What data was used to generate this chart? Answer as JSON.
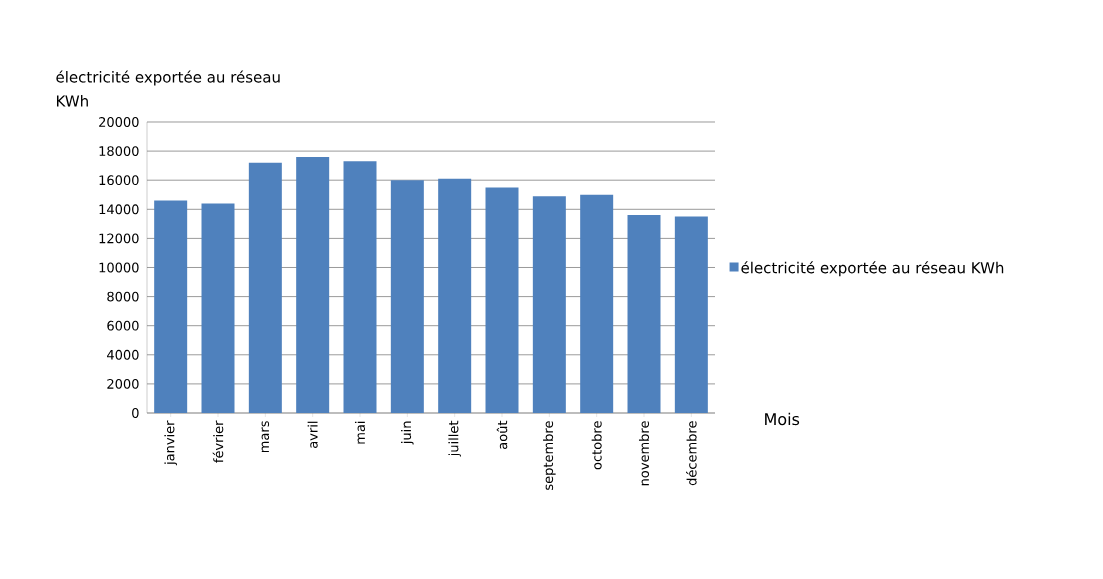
{
  "chart_data": {
    "type": "bar",
    "ylabel": "électricité exportée au réseau KWh",
    "xlabel": "Mois",
    "categories": [
      "janvier",
      "février",
      "mars",
      "avril",
      "mai",
      "juin",
      "juillet",
      "août",
      "septembre",
      "octobre",
      "novembre",
      "décembre"
    ],
    "series": [
      {
        "name": "électricité exportée au réseau  KWh",
        "color": "#4f81bd",
        "values": [
          14600,
          14400,
          17200,
          17600,
          17300,
          16000,
          16100,
          15500,
          14900,
          15000,
          13600,
          13500
        ]
      }
    ],
    "ylim": [
      0,
      20000
    ],
    "yticks": [
      0,
      2000,
      4000,
      6000,
      8000,
      10000,
      12000,
      14000,
      16000,
      18000,
      20000
    ],
    "grid": "y",
    "legend": "right"
  }
}
